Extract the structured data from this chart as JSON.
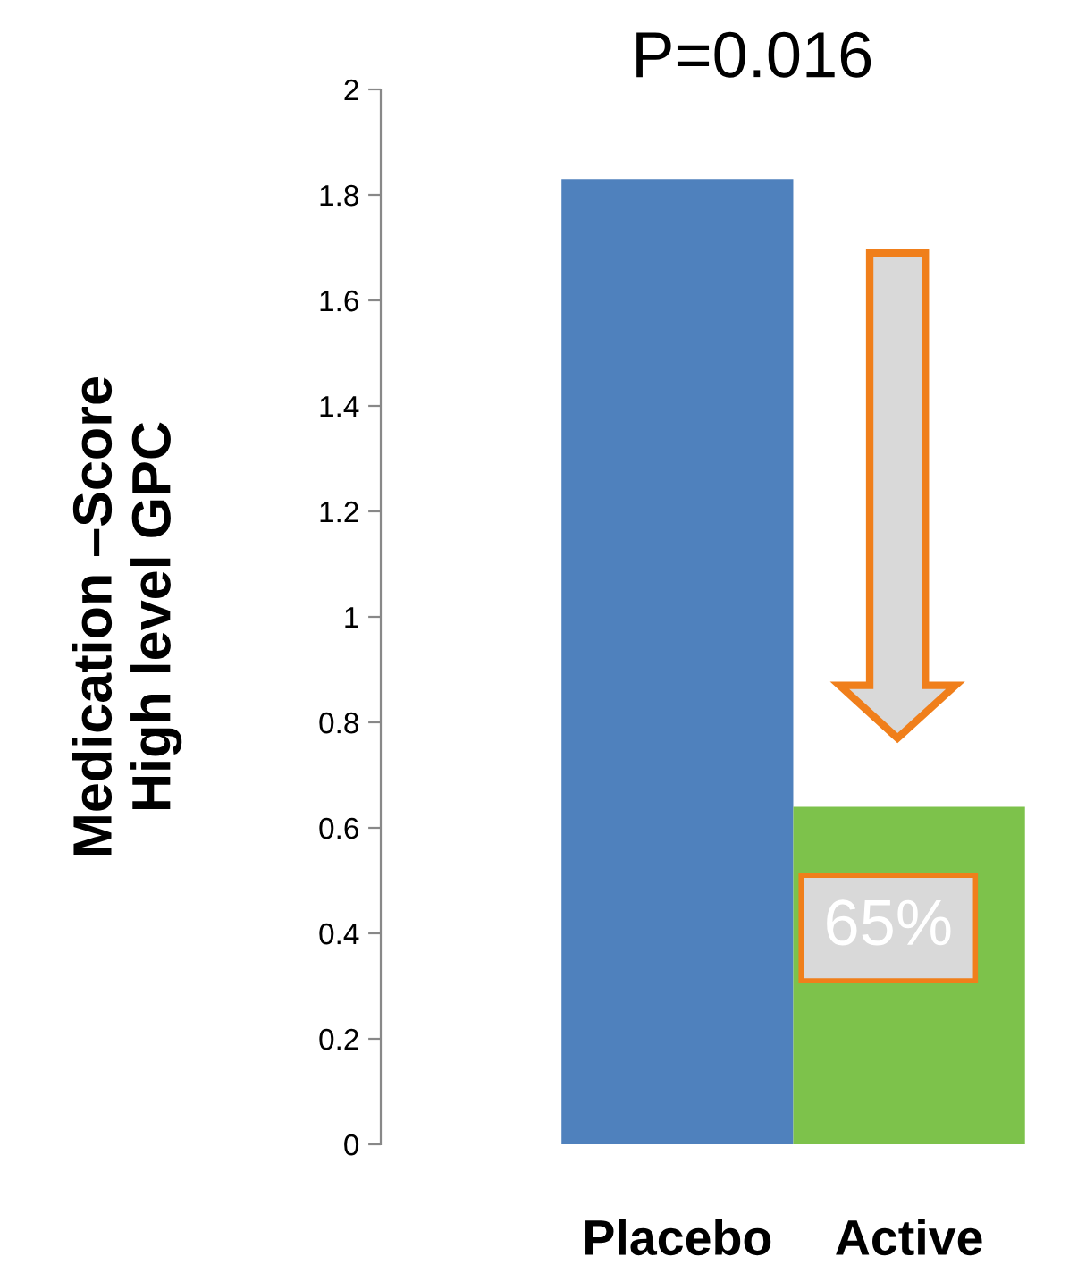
{
  "chart_data": {
    "type": "bar",
    "title": "P=0.016",
    "ylabel": "Medication –Score\nHigh level GPC",
    "categories": [
      "Placebo",
      "Active"
    ],
    "values": [
      1.83,
      0.64
    ],
    "colors": [
      "#4f81bd",
      "#7dc24b"
    ],
    "ylim": [
      0,
      2
    ],
    "yticks": [
      0,
      0.2,
      0.4,
      0.6,
      0.8,
      1,
      1.2,
      1.4,
      1.6,
      1.8,
      2
    ],
    "grid": false,
    "annotations": [
      "65%"
    ]
  }
}
